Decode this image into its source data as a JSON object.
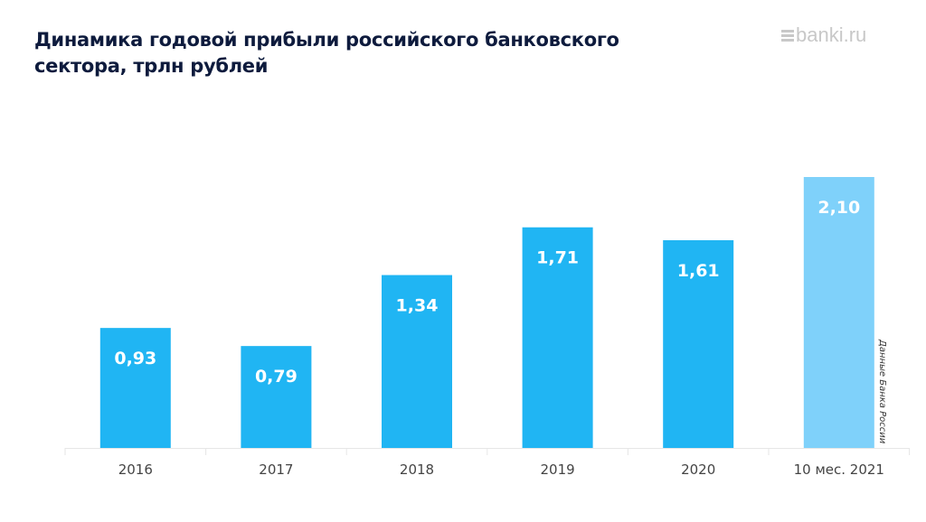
{
  "header": {
    "title": "Динамика годовой прибыли российского банковского сектора, трлн рублей",
    "logo": "banki.ru"
  },
  "source": "Данные Банка России",
  "chart_data": {
    "type": "bar",
    "title": "Динамика годовой прибыли российского банковского сектора, трлн рублей",
    "categories": [
      "2016",
      "2017",
      "2018",
      "2019",
      "2020",
      "10 мес. 2021"
    ],
    "values": [
      0.93,
      0.79,
      1.34,
      1.71,
      1.61,
      2.1
    ],
    "labels": [
      "0,93",
      "0,79",
      "1,34",
      "1,71",
      "1,61",
      "2,10"
    ],
    "colors": [
      "#20b5f3",
      "#20b5f3",
      "#20b5f3",
      "#20b5f3",
      "#20b5f3",
      "#7fd1fa"
    ],
    "xlabel": "",
    "ylabel": "трлн рублей",
    "ylim": [
      0,
      2.1
    ],
    "grid": false,
    "legend": "none"
  }
}
